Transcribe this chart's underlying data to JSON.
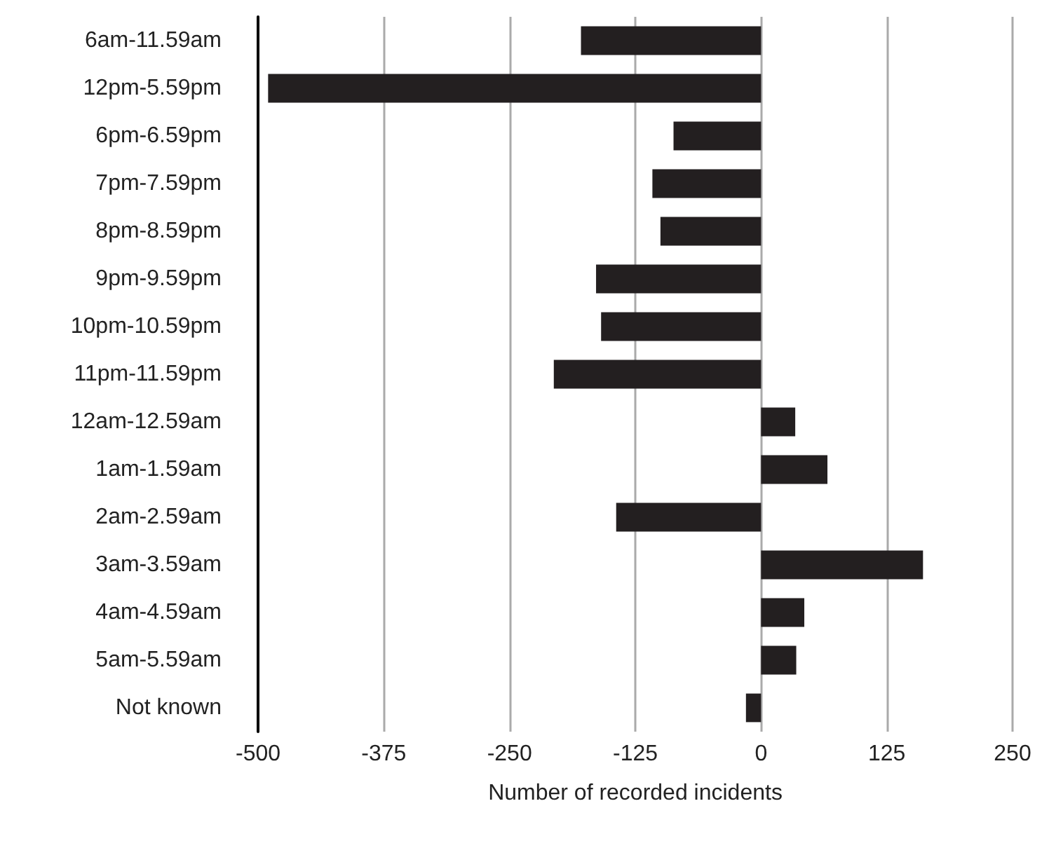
{
  "chart_data": {
    "type": "bar",
    "orientation": "horizontal",
    "xlabel": "Number of recorded incidents",
    "categories": [
      "6am-11.59am",
      "12pm-5.59pm",
      "6pm-6.59pm",
      "7pm-7.59pm",
      "8pm-8.59pm",
      "9pm-9.59pm",
      "10pm-10.59pm",
      "11pm-11.59pm",
      "12am-12.59am",
      "1am-1.59am",
      "2am-2.59am",
      "3am-3.59am",
      "4am-4.59am",
      "5am-5.59am",
      "Not known"
    ],
    "values": [
      -179,
      -490,
      -87,
      -108,
      -100,
      -164,
      -159,
      -206,
      34,
      66,
      -144,
      161,
      43,
      35,
      -15
    ],
    "color": "#231f20",
    "xlim": [
      -500,
      250
    ],
    "xticks": [
      -500,
      -375,
      -250,
      -125,
      0,
      125,
      250
    ],
    "grid": "x"
  }
}
